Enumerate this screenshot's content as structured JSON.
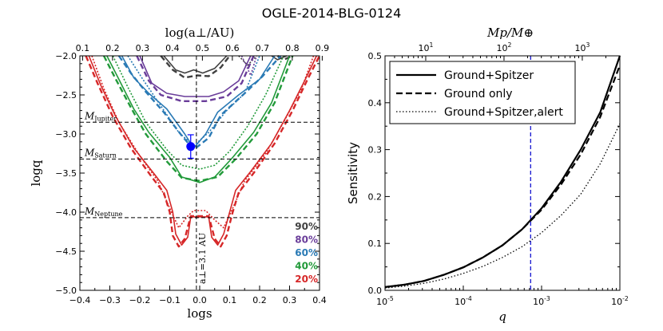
{
  "title": "OGLE-2014-BLG-0124",
  "colors": {
    "p90": "#404040",
    "p80": "#6a3d9a",
    "p60": "#2a7ab5",
    "p40": "#229a3a",
    "p20": "#d62728",
    "point": "#0000ff",
    "vline": "#0000cc"
  },
  "chart_data": [
    {
      "type": "contour",
      "xlabel": "logs",
      "ylabel": "logq",
      "top_xlabel": "log(a⊥/AU)",
      "xlim": [
        -0.4,
        0.4
      ],
      "ylim": [
        -5.0,
        -2.0
      ],
      "xticks": [
        "−0.4",
        "−0.3",
        "−0.2",
        "−0.1",
        "0.0",
        "0.1",
        "0.2",
        "0.3",
        "0.4"
      ],
      "yticks": [
        "−2.0",
        "−2.5",
        "−3.0",
        "−3.5",
        "−4.0",
        "−4.5",
        "−5.0"
      ],
      "top_xticks": [
        "0.1",
        "0.2",
        "0.3",
        "0.4",
        "0.5",
        "0.6",
        "0.7",
        "0.8",
        "0.9"
      ],
      "top_tick_x": [
        -0.391,
        -0.291,
        -0.191,
        -0.091,
        0.009,
        0.109,
        0.209,
        0.309,
        0.409
      ],
      "ref_lines": [
        {
          "label": "M",
          "sub": "Jupiter",
          "logq": -2.85
        },
        {
          "label": "M",
          "sub": "Saturn",
          "logq": -3.32
        },
        {
          "label": "M",
          "sub": "Neptune",
          "logq": -4.07
        }
      ],
      "vline_x": -0.011,
      "vline_label": "a⊥=3.1 AU",
      "point": {
        "logs": -0.03,
        "logq": -3.16,
        "err": 0.15
      },
      "contour_labels": [
        "90%",
        "80%",
        "60%",
        "40%",
        "20%"
      ],
      "contours": [
        {
          "level": "90%",
          "color": "#404040",
          "solid": [
            [
              -0.12,
              -2.0
            ],
            [
              -0.08,
              -2.18
            ],
            [
              -0.05,
              -2.22
            ],
            [
              -0.02,
              -2.18
            ],
            [
              0.01,
              -2.22
            ],
            [
              0.05,
              -2.16
            ],
            [
              0.09,
              -2.0
            ]
          ],
          "dashed": [
            [
              -0.13,
              -2.0
            ],
            [
              -0.09,
              -2.18
            ],
            [
              -0.05,
              -2.28
            ],
            [
              -0.01,
              -2.25
            ],
            [
              0.03,
              -2.26
            ],
            [
              0.07,
              -2.15
            ],
            [
              0.1,
              -2.0
            ]
          ],
          "dotted": [
            [
              0.13,
              -2.0
            ],
            [
              0.16,
              -2.12
            ],
            [
              0.19,
              -2.0
            ]
          ],
          "right_solid": [
            [
              0.24,
              -2.0
            ],
            [
              0.26,
              -2.05
            ],
            [
              0.29,
              -2.0
            ]
          ],
          "right_dashed": [
            [
              0.26,
              -2.0
            ],
            [
              0.28,
              -2.05
            ],
            [
              0.31,
              -2.0
            ]
          ]
        },
        {
          "level": "80%",
          "color": "#6a3d9a",
          "solid": [
            [
              -0.2,
              -2.0
            ],
            [
              -0.16,
              -2.35
            ],
            [
              -0.11,
              -2.48
            ],
            [
              -0.05,
              -2.52
            ],
            [
              0.03,
              -2.52
            ],
            [
              0.08,
              -2.46
            ],
            [
              0.13,
              -2.32
            ],
            [
              0.17,
              -2.0
            ]
          ],
          "dashed": [
            [
              -0.21,
              -2.0
            ],
            [
              -0.17,
              -2.32
            ],
            [
              -0.13,
              -2.5
            ],
            [
              -0.06,
              -2.58
            ],
            [
              0.02,
              -2.58
            ],
            [
              0.09,
              -2.52
            ],
            [
              0.14,
              -2.35
            ],
            [
              0.18,
              -2.0
            ]
          ],
          "dotted": [
            [
              0.14,
              -2.0
            ],
            [
              0.17,
              -2.25
            ],
            [
              0.19,
              -2.0
            ]
          ]
        },
        {
          "level": "60%",
          "color": "#2a7ab5",
          "solid": [
            [
              -0.26,
              -2.0
            ],
            [
              -0.22,
              -2.28
            ],
            [
              -0.17,
              -2.48
            ],
            [
              -0.11,
              -2.68
            ],
            [
              -0.05,
              -3.0
            ],
            [
              -0.02,
              -3.18
            ],
            [
              0.02,
              -3.0
            ],
            [
              0.06,
              -2.72
            ],
            [
              0.13,
              -2.5
            ],
            [
              0.2,
              -2.3
            ],
            [
              0.25,
              -2.0
            ]
          ],
          "dashed": [
            [
              -0.27,
              -2.0
            ],
            [
              -0.23,
              -2.22
            ],
            [
              -0.18,
              -2.46
            ],
            [
              -0.12,
              -2.72
            ],
            [
              -0.06,
              -3.02
            ],
            [
              -0.02,
              -3.2
            ],
            [
              0.03,
              -3.05
            ],
            [
              0.07,
              -2.76
            ],
            [
              0.15,
              -2.48
            ],
            [
              0.21,
              -2.26
            ],
            [
              0.27,
              -2.0
            ]
          ],
          "dotted": [
            [
              -0.24,
              -2.0
            ],
            [
              -0.19,
              -2.3
            ],
            [
              -0.13,
              -2.64
            ],
            [
              -0.07,
              -2.98
            ],
            [
              -0.02,
              -3.15
            ],
            [
              0.03,
              -2.98
            ],
            [
              0.09,
              -2.7
            ],
            [
              0.15,
              -2.48
            ],
            [
              0.2,
              -2.0
            ]
          ]
        },
        {
          "level": "40%",
          "color": "#229a3a",
          "solid": [
            [
              -0.31,
              -2.0
            ],
            [
              -0.27,
              -2.3
            ],
            [
              -0.22,
              -2.68
            ],
            [
              -0.17,
              -2.98
            ],
            [
              -0.1,
              -3.3
            ],
            [
              -0.06,
              -3.55
            ],
            [
              0.0,
              -3.62
            ],
            [
              0.05,
              -3.55
            ],
            [
              0.11,
              -3.3
            ],
            [
              0.18,
              -2.98
            ],
            [
              0.24,
              -2.6
            ],
            [
              0.3,
              -2.0
            ]
          ],
          "dashed": [
            [
              -0.32,
              -2.0
            ],
            [
              -0.28,
              -2.3
            ],
            [
              -0.23,
              -2.66
            ],
            [
              -0.18,
              -3.0
            ],
            [
              -0.11,
              -3.35
            ],
            [
              -0.06,
              -3.56
            ],
            [
              0.0,
              -3.6
            ],
            [
              0.06,
              -3.55
            ],
            [
              0.12,
              -3.32
            ],
            [
              0.19,
              -3.0
            ],
            [
              0.25,
              -2.6
            ],
            [
              0.31,
              -2.0
            ]
          ],
          "dotted": [
            [
              -0.29,
              -2.0
            ],
            [
              -0.24,
              -2.4
            ],
            [
              -0.18,
              -2.85
            ],
            [
              -0.11,
              -3.2
            ],
            [
              -0.06,
              -3.4
            ],
            [
              0.0,
              -3.45
            ],
            [
              0.05,
              -3.4
            ],
            [
              0.1,
              -3.22
            ],
            [
              0.16,
              -2.9
            ],
            [
              0.22,
              -2.5
            ],
            [
              0.28,
              -2.0
            ]
          ]
        },
        {
          "level": "20%",
          "color": "#d62728",
          "solid": [
            [
              -0.37,
              -2.0
            ],
            [
              -0.33,
              -2.38
            ],
            [
              -0.28,
              -2.78
            ],
            [
              -0.22,
              -3.18
            ],
            [
              -0.15,
              -3.52
            ],
            [
              -0.11,
              -3.72
            ],
            [
              -0.09,
              -4.0
            ],
            [
              -0.08,
              -4.28
            ],
            [
              -0.06,
              -4.42
            ],
            [
              -0.04,
              -4.32
            ],
            [
              -0.03,
              -4.06
            ],
            [
              0.03,
              -4.06
            ],
            [
              0.04,
              -4.32
            ],
            [
              0.06,
              -4.42
            ],
            [
              0.08,
              -4.28
            ],
            [
              0.1,
              -4.0
            ],
            [
              0.12,
              -3.72
            ],
            [
              0.17,
              -3.48
            ],
            [
              0.24,
              -3.12
            ],
            [
              0.3,
              -2.7
            ],
            [
              0.35,
              -2.32
            ],
            [
              0.39,
              -2.0
            ]
          ],
          "dashed": [
            [
              -0.38,
              -2.0
            ],
            [
              -0.34,
              -2.36
            ],
            [
              -0.29,
              -2.78
            ],
            [
              -0.23,
              -3.18
            ],
            [
              -0.16,
              -3.55
            ],
            [
              -0.12,
              -3.75
            ],
            [
              -0.1,
              -4.0
            ],
            [
              -0.09,
              -4.3
            ],
            [
              -0.07,
              -4.44
            ],
            [
              -0.05,
              -4.34
            ],
            [
              -0.03,
              -4.05
            ],
            [
              0.03,
              -4.05
            ],
            [
              0.05,
              -4.34
            ],
            [
              0.07,
              -4.44
            ],
            [
              0.09,
              -4.3
            ],
            [
              0.11,
              -4.0
            ],
            [
              0.13,
              -3.75
            ],
            [
              0.18,
              -3.5
            ],
            [
              0.25,
              -3.12
            ],
            [
              0.31,
              -2.7
            ],
            [
              0.36,
              -2.3
            ],
            [
              0.4,
              -2.0
            ]
          ],
          "dotted": [
            [
              -0.36,
              -2.0
            ],
            [
              -0.32,
              -2.42
            ],
            [
              -0.27,
              -2.85
            ],
            [
              -0.2,
              -3.28
            ],
            [
              -0.14,
              -3.6
            ],
            [
              -0.1,
              -3.95
            ],
            [
              -0.07,
              -4.2
            ],
            [
              -0.04,
              -4.05
            ],
            [
              -0.02,
              -3.98
            ],
            [
              0.02,
              -3.98
            ],
            [
              0.05,
              -4.1
            ],
            [
              0.08,
              -4.2
            ],
            [
              0.11,
              -3.95
            ],
            [
              0.15,
              -3.6
            ],
            [
              0.22,
              -3.25
            ],
            [
              0.28,
              -2.85
            ],
            [
              0.34,
              -2.42
            ],
            [
              0.38,
              -2.0
            ]
          ]
        }
      ]
    },
    {
      "type": "line",
      "xlabel": "q",
      "ylabel": "Sensitivity",
      "top_xlabel": "Mp/M⊕",
      "xscale": "log",
      "xlim": [
        -5,
        -2
      ],
      "ylim": [
        0.0,
        0.5
      ],
      "xticks": [
        {
          "base": "10",
          "exp": "-5"
        },
        {
          "base": "10",
          "exp": "-4"
        },
        {
          "base": "10",
          "exp": "-3"
        },
        {
          "base": "10",
          "exp": "-2"
        }
      ],
      "yticks": [
        "0.0",
        "0.1",
        "0.2",
        "0.3",
        "0.4",
        "0.5"
      ],
      "top_xticks": [
        {
          "base": "10",
          "exp": "1"
        },
        {
          "base": "10",
          "exp": "2"
        },
        {
          "base": "10",
          "exp": "3"
        }
      ],
      "top_tick_logq": [
        -4.48,
        -3.48,
        -2.48
      ],
      "vline_logq": -3.14,
      "legend": [
        "Ground+Spitzer",
        "Ground only",
        "Ground+Spitzer,alert"
      ],
      "series": [
        {
          "name": "Ground+Spitzer",
          "style": "solid",
          "logq": [
            -5.0,
            -4.75,
            -4.5,
            -4.25,
            -4.0,
            -3.75,
            -3.5,
            -3.25,
            -3.0,
            -2.75,
            -2.5,
            -2.25,
            -2.0
          ],
          "values": [
            0.007,
            0.012,
            0.02,
            0.033,
            0.049,
            0.07,
            0.096,
            0.13,
            0.175,
            0.232,
            0.3,
            0.38,
            0.5
          ]
        },
        {
          "name": "Ground only",
          "style": "dashed",
          "logq": [
            -5.0,
            -4.75,
            -4.5,
            -4.25,
            -4.0,
            -3.75,
            -3.5,
            -3.25,
            -3.0,
            -2.75,
            -2.5,
            -2.25,
            -2.0
          ],
          "values": [
            0.007,
            0.012,
            0.02,
            0.033,
            0.049,
            0.07,
            0.096,
            0.13,
            0.172,
            0.226,
            0.29,
            0.37,
            0.48
          ]
        },
        {
          "name": "Ground+Spitzer,alert",
          "style": "dotted",
          "logq": [
            -5.0,
            -4.75,
            -4.5,
            -4.25,
            -4.0,
            -3.75,
            -3.5,
            -3.25,
            -3.0,
            -2.75,
            -2.5,
            -2.25,
            -2.0
          ],
          "values": [
            0.005,
            0.009,
            0.015,
            0.024,
            0.036,
            0.051,
            0.07,
            0.093,
            0.123,
            0.16,
            0.205,
            0.27,
            0.355
          ]
        }
      ]
    }
  ]
}
